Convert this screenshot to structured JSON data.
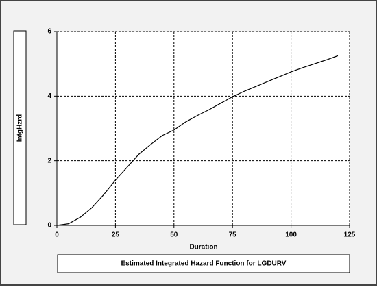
{
  "chart_data": {
    "type": "line",
    "title": "Estimated Integrated Hazard Function for LGDURV",
    "x_label": "Duration",
    "y_label": "IntgHzrd",
    "x": [
      0,
      5,
      10,
      15,
      20,
      25,
      30,
      35,
      40,
      45,
      50,
      55,
      60,
      65,
      70,
      75,
      80,
      85,
      90,
      95,
      100,
      105,
      110,
      115,
      120
    ],
    "series": [
      {
        "name": "IntgHzrd",
        "color": "#000000",
        "values": [
          0,
          0.05,
          0.25,
          0.55,
          0.95,
          1.4,
          1.8,
          2.2,
          2.5,
          2.78,
          2.95,
          3.2,
          3.4,
          3.58,
          3.78,
          3.98,
          4.15,
          4.3,
          4.45,
          4.6,
          4.75,
          4.88,
          5.0,
          5.12,
          5.25
        ]
      }
    ],
    "xlim": [
      0,
      125
    ],
    "xticks": [
      0,
      25,
      50,
      75,
      100,
      125
    ],
    "ylim": [
      0,
      6
    ],
    "yticks": [
      0,
      2,
      4,
      6
    ],
    "grid": true
  }
}
